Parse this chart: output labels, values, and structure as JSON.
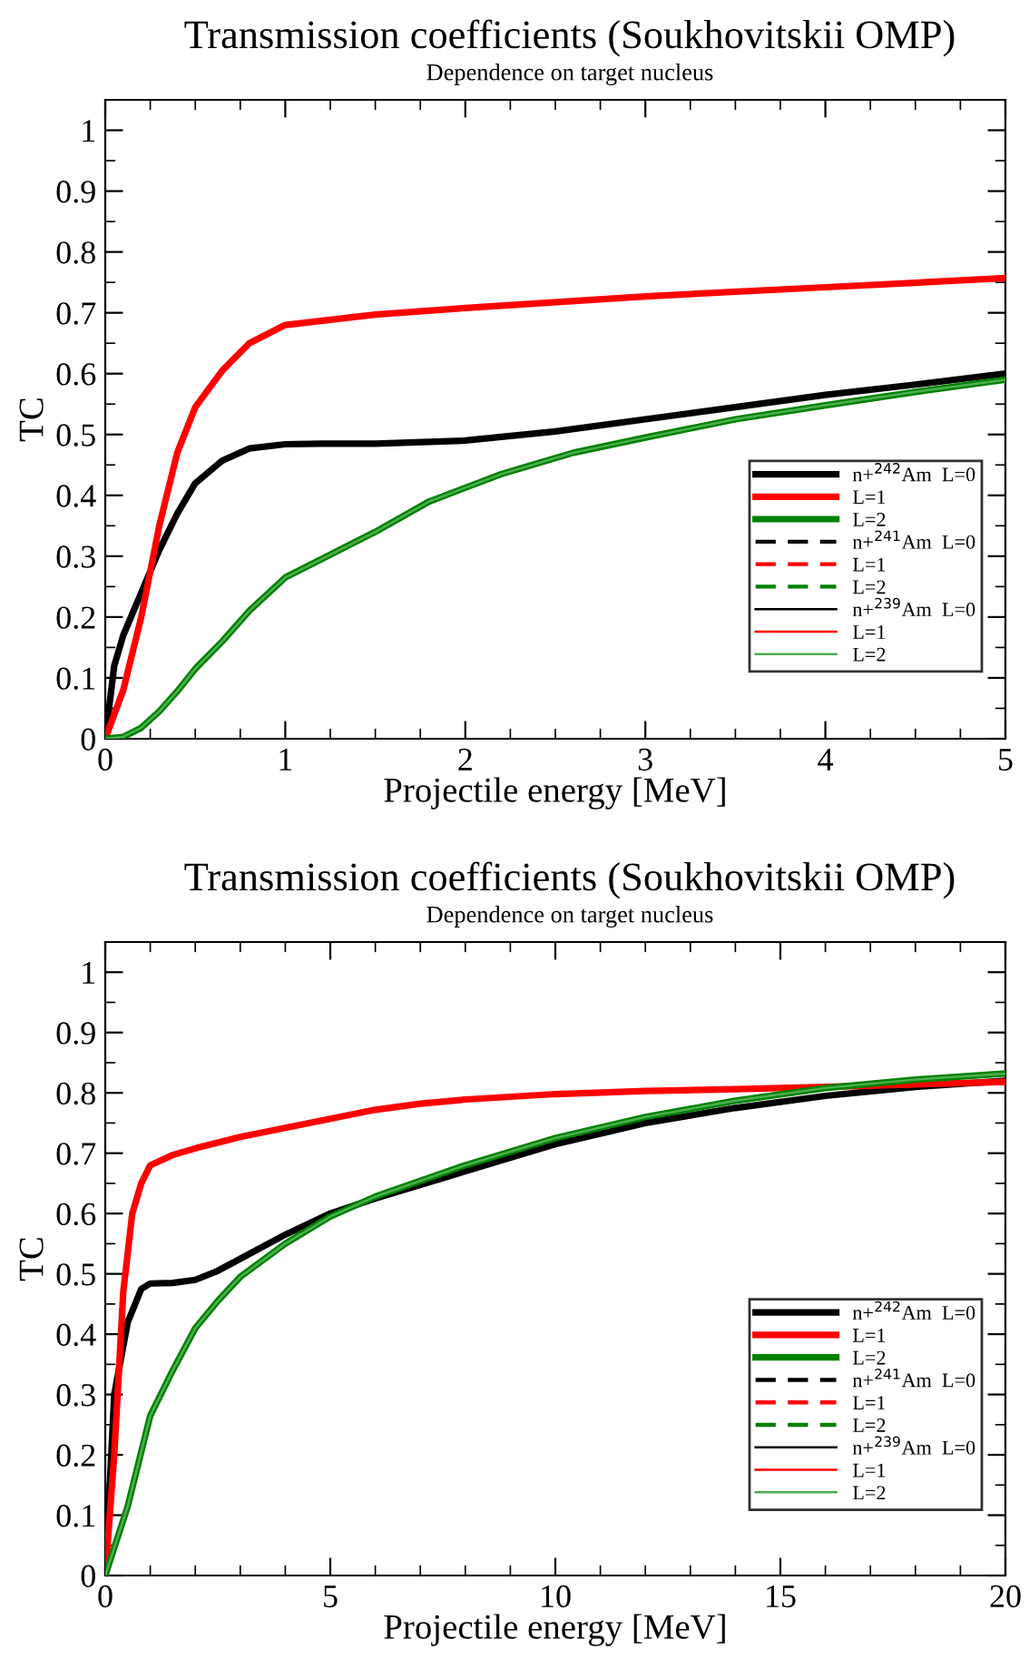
{
  "chart_data": [
    {
      "type": "line",
      "title": "Transmission coefficients (Soukhovitskii OMP)",
      "subtitle": "Dependence on target nucleus",
      "xlabel": "Projectile energy [MeV]",
      "ylabel": "TC",
      "xlim": [
        0,
        5
      ],
      "ylim": [
        0,
        1.05
      ],
      "xticks": [
        0,
        1,
        2,
        3,
        4,
        5
      ],
      "yticks": [
        0,
        0.1,
        0.2,
        0.3,
        0.4,
        0.5,
        0.6,
        0.7,
        0.8,
        0.9,
        1
      ],
      "grid": false,
      "legend": "right",
      "series": [
        {
          "name": "n+$^{242}$Am  L=0",
          "color": "#000000",
          "line_style": "solid",
          "x": [
            0,
            0.05,
            0.1,
            0.2,
            0.3,
            0.4,
            0.5,
            0.65,
            0.8,
            1.0,
            1.2,
            1.5,
            2.0,
            2.5,
            3.0,
            3.5,
            4.0,
            4.5,
            5.0
          ],
          "values": [
            0,
            0.12,
            0.17,
            0.24,
            0.31,
            0.37,
            0.42,
            0.457,
            0.477,
            0.484,
            0.485,
            0.485,
            0.49,
            0.505,
            0.525,
            0.545,
            0.565,
            0.582,
            0.6
          ]
        },
        {
          "name": "L=1",
          "color": "#ff0000",
          "line_style": "solid",
          "x": [
            0,
            0.1,
            0.2,
            0.3,
            0.4,
            0.5,
            0.65,
            0.8,
            1.0,
            1.5,
            2,
            3,
            4,
            5
          ],
          "values": [
            0,
            0.08,
            0.2,
            0.35,
            0.47,
            0.545,
            0.605,
            0.65,
            0.68,
            0.697,
            0.708,
            0.727,
            0.742,
            0.757
          ]
        },
        {
          "name": "L=2",
          "color": "#008000",
          "line_style": "solid",
          "x": [
            0,
            0.1,
            0.2,
            0.3,
            0.4,
            0.5,
            0.65,
            0.8,
            1.0,
            1.5,
            1.8,
            2.2,
            2.6,
            3,
            3.5,
            4,
            4.5,
            5
          ],
          "values": [
            0,
            0.003,
            0.018,
            0.045,
            0.078,
            0.115,
            0.16,
            0.21,
            0.265,
            0.34,
            0.39,
            0.435,
            0.47,
            0.495,
            0.525,
            0.548,
            0.57,
            0.59
          ]
        },
        {
          "name": "n+$^{241}$Am  L=0",
          "color": "#000000",
          "line_style": "dashed"
        },
        {
          "name": "L=1",
          "color": "#ff0000",
          "line_style": "dashed"
        },
        {
          "name": "L=2",
          "color": "#008000",
          "line_style": "dashed"
        },
        {
          "name": "n+$^{239}$Am  L=0",
          "color": "#000000",
          "line_style": "solid"
        },
        {
          "name": "L=1",
          "color": "#ff0000",
          "line_style": "solid"
        },
        {
          "name": "L=2",
          "color": "#4caf50",
          "line_style": "solid",
          "x": [
            0,
            0.1,
            0.2,
            0.3,
            0.4,
            0.5,
            0.65,
            0.8,
            1.0,
            1.5,
            1.8,
            2.2,
            2.6,
            3,
            3.5,
            4,
            4.5,
            5
          ],
          "values": [
            0,
            0.003,
            0.018,
            0.045,
            0.078,
            0.115,
            0.16,
            0.21,
            0.265,
            0.34,
            0.39,
            0.435,
            0.47,
            0.495,
            0.525,
            0.548,
            0.57,
            0.59
          ]
        }
      ]
    },
    {
      "type": "line",
      "title": "Transmission coefficients (Soukhovitskii OMP)",
      "subtitle": "Dependence on target nucleus",
      "xlabel": "Projectile energy [MeV]",
      "ylabel": "TC",
      "xlim": [
        0,
        20
      ],
      "ylim": [
        0,
        1.05
      ],
      "xticks": [
        0,
        5,
        10,
        15,
        20
      ],
      "yticks": [
        0,
        0.1,
        0.2,
        0.3,
        0.4,
        0.5,
        0.6,
        0.7,
        0.8,
        0.9,
        1
      ],
      "grid": false,
      "legend": "right",
      "series": [
        {
          "name": "n+$^{242}$Am  L=0",
          "color": "#000000",
          "line_style": "solid",
          "x": [
            0,
            0.2,
            0.5,
            0.8,
            1.0,
            1.5,
            2,
            2.5,
            3,
            4,
            5,
            6,
            8,
            10,
            12,
            14,
            16,
            18,
            20
          ],
          "values": [
            0,
            0.3,
            0.42,
            0.475,
            0.484,
            0.485,
            0.49,
            0.505,
            0.525,
            0.565,
            0.6,
            0.625,
            0.67,
            0.715,
            0.75,
            0.775,
            0.795,
            0.81,
            0.82
          ]
        },
        {
          "name": "L=1",
          "color": "#ff0000",
          "line_style": "solid",
          "x": [
            0,
            0.2,
            0.4,
            0.6,
            0.8,
            1.0,
            1.5,
            2,
            3,
            4,
            5,
            6,
            7,
            8,
            10,
            12,
            14,
            16,
            18,
            20
          ],
          "values": [
            0,
            0.2,
            0.47,
            0.6,
            0.65,
            0.68,
            0.697,
            0.708,
            0.727,
            0.742,
            0.757,
            0.772,
            0.782,
            0.789,
            0.798,
            0.803,
            0.806,
            0.81,
            0.814,
            0.818
          ]
        },
        {
          "name": "L=2",
          "color": "#008000",
          "line_style": "solid",
          "x": [
            0,
            0.5,
            1,
            1.5,
            2,
            2.5,
            3,
            4,
            5,
            6,
            8,
            10,
            12,
            14,
            16,
            18,
            20
          ],
          "values": [
            0,
            0.115,
            0.265,
            0.34,
            0.41,
            0.455,
            0.495,
            0.55,
            0.595,
            0.628,
            0.68,
            0.725,
            0.76,
            0.787,
            0.808,
            0.822,
            0.832
          ]
        },
        {
          "name": "n+$^{241}$Am  L=0",
          "color": "#000000",
          "line_style": "dashed"
        },
        {
          "name": "L=1",
          "color": "#ff0000",
          "line_style": "dashed"
        },
        {
          "name": "L=2",
          "color": "#008000",
          "line_style": "dashed"
        },
        {
          "name": "n+$^{239}$Am  L=0",
          "color": "#000000",
          "line_style": "solid"
        },
        {
          "name": "L=1",
          "color": "#ff0000",
          "line_style": "solid"
        },
        {
          "name": "L=2",
          "color": "#4caf50",
          "line_style": "solid",
          "x": [
            0,
            0.5,
            1,
            1.5,
            2,
            2.5,
            3,
            4,
            5,
            6,
            8,
            10,
            12,
            14,
            16,
            18,
            20
          ],
          "values": [
            0,
            0.115,
            0.265,
            0.34,
            0.41,
            0.455,
            0.495,
            0.55,
            0.595,
            0.628,
            0.68,
            0.725,
            0.76,
            0.787,
            0.808,
            0.822,
            0.832
          ]
        }
      ]
    }
  ]
}
